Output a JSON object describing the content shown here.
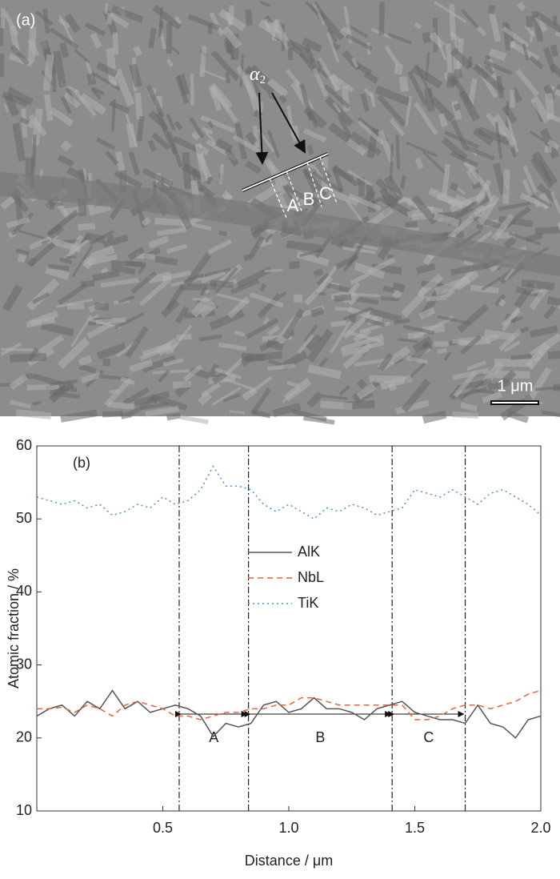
{
  "micrograph": {
    "panel_label": "(a)",
    "phase_label": "α",
    "phase_subscript": "2",
    "markers": [
      "A",
      "B",
      "C"
    ],
    "scale_bar": "1 μm"
  },
  "chart_data": {
    "type": "line",
    "panel_label": "(b)",
    "x_label": "Distance / μm",
    "y_label": "Atomic fraction / %",
    "xlim": [
      0,
      2.0
    ],
    "ylim": [
      10,
      60
    ],
    "xticks": [
      0.5,
      {
        "value": 1.0,
        "label": "1.0"
      },
      1.5,
      {
        "value": 2.0,
        "label": "2.0"
      }
    ],
    "yticks": [
      10,
      20,
      30,
      40,
      50,
      60
    ],
    "x": [
      0,
      0.05,
      0.1,
      0.15,
      0.2,
      0.25,
      0.3,
      0.35,
      0.4,
      0.45,
      0.5,
      0.55,
      0.6,
      0.65,
      0.7,
      0.75,
      0.8,
      0.85,
      0.9,
      0.95,
      1.0,
      1.05,
      1.1,
      1.15,
      1.2,
      1.25,
      1.3,
      1.35,
      1.4,
      1.45,
      1.5,
      1.55,
      1.6,
      1.65,
      1.7,
      1.75,
      1.8,
      1.85,
      1.9,
      1.95,
      2.0
    ],
    "series": [
      {
        "name": "AlK",
        "color": "#555555",
        "style": "solid",
        "values": [
          23,
          24,
          24.5,
          23,
          25,
          24,
          26.5,
          24,
          25,
          23.5,
          24,
          24.5,
          24,
          23,
          20.2,
          22,
          21.5,
          22,
          24.5,
          25,
          23.5,
          24,
          25.5,
          24,
          24,
          23.5,
          22.5,
          24,
          24.5,
          25,
          23.5,
          23,
          22.5,
          22.5,
          22,
          24.5,
          22,
          21.5,
          20,
          22.5,
          23
        ]
      },
      {
        "name": "NbL",
        "color": "#e8643c",
        "style": "dashed",
        "values": [
          24,
          24,
          24.2,
          23.5,
          24.5,
          24,
          23,
          24.5,
          25,
          24.5,
          24,
          23,
          23,
          22.5,
          23,
          23.5,
          23.5,
          24,
          24,
          24.5,
          24.5,
          25.5,
          25.5,
          25,
          24.5,
          24.5,
          24.5,
          24.5,
          24.5,
          24.5,
          22.5,
          22.5,
          23,
          24,
          24.5,
          24.5,
          24,
          24.5,
          25,
          26,
          26.5
        ]
      },
      {
        "name": "TiK",
        "color": "#4a8fd6",
        "style": "dotted",
        "values": [
          53,
          52.5,
          52,
          52.5,
          51.5,
          52,
          50.5,
          51,
          52,
          51.5,
          53,
          52,
          52.5,
          54,
          57.2,
          54.5,
          54.5,
          54,
          52,
          51,
          52,
          51,
          50,
          51.5,
          51,
          52,
          51.5,
          50.5,
          51,
          51.5,
          54,
          53.5,
          53,
          54,
          53,
          52,
          53.5,
          54,
          53,
          52,
          50.5
        ]
      }
    ],
    "boundaries": [
      0.565,
      0.84,
      1.41,
      1.7
    ],
    "regions": [
      "A",
      "B",
      "C"
    ]
  }
}
